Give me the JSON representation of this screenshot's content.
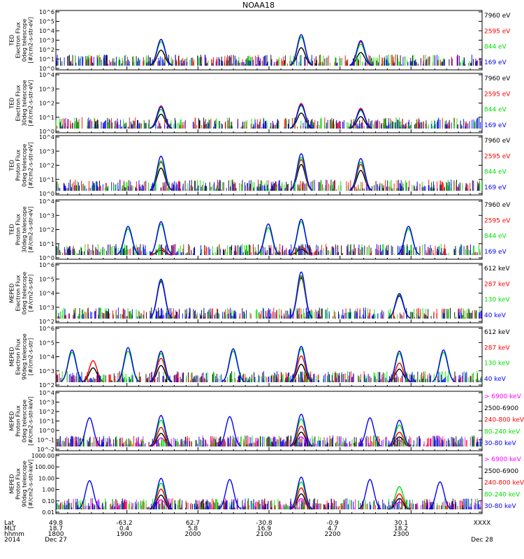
{
  "title": "NOAA18",
  "colors": {
    "black": "#000000",
    "red": "#ff0000",
    "green": "#00e000",
    "blue": "#0000ff",
    "magenta": "#ff00ff"
  },
  "chart_data": [
    {
      "type": "line",
      "ylabel": [
        "TED",
        "Electron Flux",
        "0deg telescope",
        "[#/cm2-s-str-eV]"
      ],
      "yticks": [
        "10^6",
        "10^5",
        "10^4",
        "10^3",
        "10^2",
        "10^1",
        "10^0"
      ],
      "series": [
        {
          "name": "7960 eV",
          "color": "#000000",
          "peaks": [
            {
              "x": 8.42,
              "h": 1.3
            },
            {
              "x": 10.42,
              "h": 1.5
            },
            {
              "x": 11.27,
              "h": 1.1
            }
          ]
        },
        {
          "name": "2595 eV",
          "color": "#ff0000",
          "peaks": [
            {
              "x": 8.42,
              "h": 2.2
            },
            {
              "x": 10.42,
              "h": 2.4
            },
            {
              "x": 11.27,
              "h": 2.0
            }
          ]
        },
        {
          "name": "844 eV",
          "color": "#00e000",
          "peaks": [
            {
              "x": 8.42,
              "h": 2.0
            },
            {
              "x": 10.42,
              "h": 2.4
            },
            {
              "x": 11.27,
              "h": 1.8
            }
          ]
        },
        {
          "name": "169 eV",
          "color": "#0000ff",
          "peaks": [
            {
              "x": 8.42,
              "h": 2.2
            },
            {
              "x": 10.42,
              "h": 2.6
            },
            {
              "x": 11.27,
              "h": 2.1
            }
          ]
        }
      ]
    },
    {
      "type": "line",
      "ylabel": [
        "TED",
        "Electron Flux",
        "30deg telescope",
        "[#/cm2-s-str-eV]"
      ],
      "yticks": [
        "10^4",
        "10^3",
        "10^2",
        "10^1",
        "10^0"
      ],
      "series": [
        {
          "name": "7960 eV",
          "color": "#000000",
          "peaks": [
            {
              "x": 8.42,
              "h": 1.2
            },
            {
              "x": 10.42,
              "h": 1.3
            },
            {
              "x": 11.27,
              "h": 1.0
            }
          ]
        },
        {
          "name": "2595 eV",
          "color": "#ff0000",
          "peaks": [
            {
              "x": 8.42,
              "h": 1.9
            },
            {
              "x": 10.42,
              "h": 2.1
            },
            {
              "x": 11.27,
              "h": 1.7
            }
          ]
        },
        {
          "name": "844 eV",
          "color": "#00e000",
          "peaks": [
            {
              "x": 8.42,
              "h": 1.6
            },
            {
              "x": 10.42,
              "h": 1.9
            },
            {
              "x": 11.27,
              "h": 1.5
            }
          ]
        },
        {
          "name": "169 eV",
          "color": "#0000ff",
          "peaks": [
            {
              "x": 8.42,
              "h": 1.8
            },
            {
              "x": 10.42,
              "h": 2.0
            },
            {
              "x": 11.27,
              "h": 1.6
            }
          ]
        }
      ]
    },
    {
      "type": "line",
      "ylabel": [
        "TED",
        "Proton Flux",
        "0deg telescope",
        "[#/cm2-s-str-eV]"
      ],
      "yticks": [
        "10^4",
        "10^3",
        "10^2",
        "10^1",
        "10^0"
      ],
      "series": [
        {
          "name": "7960 eV",
          "color": "#000000",
          "peaks": [
            {
              "x": 8.42,
              "h": 1.9
            },
            {
              "x": 10.42,
              "h": 2.2
            },
            {
              "x": 11.27,
              "h": 1.7
            }
          ]
        },
        {
          "name": "2595 eV",
          "color": "#ff0000",
          "peaks": [
            {
              "x": 8.42,
              "h": 2.4
            },
            {
              "x": 10.42,
              "h": 2.6
            },
            {
              "x": 11.27,
              "h": 2.2
            }
          ]
        },
        {
          "name": "844 eV",
          "color": "#00e000",
          "peaks": [
            {
              "x": 8.42,
              "h": 2.5
            },
            {
              "x": 10.42,
              "h": 2.8
            },
            {
              "x": 11.27,
              "h": 2.4
            }
          ]
        },
        {
          "name": "169 eV",
          "color": "#0000ff",
          "peaks": [
            {
              "x": 8.42,
              "h": 2.9
            },
            {
              "x": 10.42,
              "h": 3.1
            },
            {
              "x": 11.27,
              "h": 2.7
            }
          ]
        }
      ]
    },
    {
      "type": "line",
      "ylabel": [
        "TED",
        "Proton Flux",
        "30deg telescope",
        "[#/cm2-s-str-eV]"
      ],
      "yticks": [
        "10^4",
        "10^3",
        "10^2",
        "10^1",
        "10^0"
      ],
      "series": [
        {
          "name": "7960 eV",
          "color": "#000000",
          "peaks": [
            {
              "x": 8.42,
              "h": 0.4
            },
            {
              "x": 10.42,
              "h": 0.5
            }
          ]
        },
        {
          "name": "2595 eV",
          "color": "#ff0000",
          "peaks": [
            {
              "x": 8.42,
              "h": 0.6
            },
            {
              "x": 10.42,
              "h": 0.7
            }
          ]
        },
        {
          "name": "844 eV",
          "color": "#00e000",
          "peaks": [
            {
              "x": 7.95,
              "h": 2.2
            },
            {
              "x": 8.42,
              "h": 2.6
            },
            {
              "x": 9.95,
              "h": 2.3
            },
            {
              "x": 10.42,
              "h": 2.8
            },
            {
              "x": 11.95,
              "h": 2.2
            }
          ]
        },
        {
          "name": "169 eV",
          "color": "#0000ff",
          "peaks": [
            {
              "x": 7.95,
              "h": 2.4
            },
            {
              "x": 8.42,
              "h": 2.8
            },
            {
              "x": 9.95,
              "h": 2.6
            },
            {
              "x": 10.42,
              "h": 3.0
            },
            {
              "x": 11.95,
              "h": 2.4
            }
          ]
        }
      ]
    },
    {
      "type": "line",
      "ylabel": [
        "MEPED",
        "Electron Flux",
        "0deg telescope",
        "[#/cm2-s-str]"
      ],
      "yticks": [
        "10^6",
        "10^5",
        "10^4",
        "10^3",
        "10^2"
      ],
      "series": [
        {
          "name": "612 keV",
          "color": "#000000",
          "peaks": [
            {
              "x": 8.42,
              "h": 3.1
            },
            {
              "x": 10.42,
              "h": 3.4
            },
            {
              "x": 11.82,
              "h": 1.9
            }
          ]
        },
        {
          "name": "287 keV",
          "color": "#ff0000",
          "peaks": [
            {
              "x": 8.42,
              "h": 3.2
            },
            {
              "x": 10.42,
              "h": 3.5
            },
            {
              "x": 11.82,
              "h": 2.0
            }
          ]
        },
        {
          "name": "130 keV",
          "color": "#00e000",
          "peaks": [
            {
              "x": 8.42,
              "h": 3.2
            },
            {
              "x": 10.42,
              "h": 3.6
            },
            {
              "x": 11.82,
              "h": 2.0
            }
          ]
        },
        {
          "name": "40 keV",
          "color": "#0000ff",
          "peaks": [
            {
              "x": 8.42,
              "h": 3.3
            },
            {
              "x": 10.42,
              "h": 3.9
            },
            {
              "x": 11.82,
              "h": 2.1
            }
          ]
        }
      ]
    },
    {
      "type": "line",
      "ylabel": [
        "MEPED",
        "Electron Flux",
        "90deg telescope",
        "[#/cm2-s-str]"
      ],
      "yticks": [
        "10^6",
        "10^5",
        "10^4",
        "10^3",
        "10^2"
      ],
      "series": [
        {
          "name": "612 keV",
          "color": "#000000",
          "peaks": [
            {
              "x": 7.45,
              "h": 1.2
            },
            {
              "x": 8.42,
              "h": 1.4
            },
            {
              "x": 10.42,
              "h": 1.5
            },
            {
              "x": 11.82,
              "h": 1.1
            }
          ]
        },
        {
          "name": "287 keV",
          "color": "#ff0000",
          "peaks": [
            {
              "x": 7.45,
              "h": 1.8
            },
            {
              "x": 8.42,
              "h": 2.0
            },
            {
              "x": 10.42,
              "h": 2.2
            },
            {
              "x": 11.82,
              "h": 1.6
            }
          ]
        },
        {
          "name": "130 keV",
          "color": "#00e000",
          "peaks": [
            {
              "x": 7.15,
              "h": 2.5
            },
            {
              "x": 7.95,
              "h": 2.6
            },
            {
              "x": 8.42,
              "h": 2.4
            },
            {
              "x": 9.45,
              "h": 2.6
            },
            {
              "x": 10.42,
              "h": 2.8
            },
            {
              "x": 11.82,
              "h": 2.4
            },
            {
              "x": 12.45,
              "h": 2.5
            }
          ]
        },
        {
          "name": "40 keV",
          "color": "#0000ff",
          "peaks": [
            {
              "x": 7.15,
              "h": 2.7
            },
            {
              "x": 7.95,
              "h": 2.9
            },
            {
              "x": 8.42,
              "h": 2.6
            },
            {
              "x": 9.45,
              "h": 2.8
            },
            {
              "x": 10.42,
              "h": 3.0
            },
            {
              "x": 11.82,
              "h": 2.6
            },
            {
              "x": 12.45,
              "h": 2.7
            }
          ]
        }
      ]
    },
    {
      "type": "line",
      "ylabel": [
        "MEPED",
        "Proton Flux",
        "0deg telescope",
        "[#/cm2-s-str-keV]"
      ],
      "yticks": [
        "10^4",
        "10^3",
        "10^2",
        "10^1",
        "10^0",
        "10^-1",
        "10^-2"
      ],
      "series": [
        {
          "name": "> 6900 keV",
          "color": "#ff00ff",
          "peaks": [
            {
              "x": 8.42,
              "h": 0.7
            },
            {
              "x": 10.42,
              "h": 0.8
            },
            {
              "x": 11.82,
              "h": 0.5
            }
          ]
        },
        {
          "name": "2500-6900",
          "color": "#000000",
          "peaks": [
            {
              "x": 8.42,
              "h": 1.1
            },
            {
              "x": 10.42,
              "h": 1.2
            },
            {
              "x": 11.82,
              "h": 0.8
            }
          ]
        },
        {
          "name": "240-800 keV",
          "color": "#ff0000",
          "peaks": [
            {
              "x": 8.42,
              "h": 1.6
            },
            {
              "x": 10.42,
              "h": 1.7
            },
            {
              "x": 11.82,
              "h": 1.2
            }
          ]
        },
        {
          "name": "80-240 keV",
          "color": "#00e000",
          "peaks": [
            {
              "x": 8.42,
              "h": 2.2
            },
            {
              "x": 10.42,
              "h": 2.3
            },
            {
              "x": 11.82,
              "h": 1.8
            }
          ]
        },
        {
          "name": "30-80 keV",
          "color": "#0000ff",
          "peaks": [
            {
              "x": 7.4,
              "h": 2.4
            },
            {
              "x": 8.42,
              "h": 2.6
            },
            {
              "x": 9.4,
              "h": 2.5
            },
            {
              "x": 10.42,
              "h": 2.7
            },
            {
              "x": 11.4,
              "h": 2.4
            },
            {
              "x": 11.82,
              "h": 2.2
            }
          ]
        }
      ]
    },
    {
      "type": "line",
      "ylabel": [
        "MEPED",
        "Proton Flux",
        "90deg telescope",
        "[#/cm2-s-str-keV]"
      ],
      "yticks": [
        "1000.00",
        "100.00",
        "10.00",
        "1.00",
        "0.10",
        "0.01"
      ],
      "series": [
        {
          "name": "> 6900 keV",
          "color": "#ff00ff",
          "peaks": [
            {
              "x": 8.42,
              "h": 0.8
            },
            {
              "x": 10.42,
              "h": 0.9
            },
            {
              "x": 11.82,
              "h": 0.6
            }
          ]
        },
        {
          "name": "2500-6900",
          "color": "#000000",
          "peaks": [
            {
              "x": 8.42,
              "h": 1.2
            },
            {
              "x": 10.42,
              "h": 1.3
            },
            {
              "x": 11.82,
              "h": 0.9
            }
          ]
        },
        {
          "name": "240-800 keV",
          "color": "#ff0000",
          "peaks": [
            {
              "x": 8.42,
              "h": 1.7
            },
            {
              "x": 10.42,
              "h": 1.8
            },
            {
              "x": 11.82,
              "h": 1.3
            }
          ]
        },
        {
          "name": "80-240 keV",
          "color": "#00e000",
          "peaks": [
            {
              "x": 8.42,
              "h": 2.2
            },
            {
              "x": 10.42,
              "h": 2.3
            },
            {
              "x": 11.82,
              "h": 1.9
            }
          ]
        },
        {
          "name": "30-80 keV",
          "color": "#0000ff",
          "peaks": [
            {
              "x": 7.4,
              "h": 2.4
            },
            {
              "x": 8.42,
              "h": 2.6
            },
            {
              "x": 9.4,
              "h": 2.5
            },
            {
              "x": 10.42,
              "h": 2.7
            },
            {
              "x": 11.4,
              "h": 2.5
            },
            {
              "x": 12.4,
              "h": 2.3
            }
          ]
        }
      ]
    }
  ],
  "xaxis": {
    "row_labels": [
      "Lat",
      "MLT",
      "hhmm"
    ],
    "year": "2014",
    "ticks": [
      {
        "lat": "49.8",
        "mlt": "18.7",
        "hhmm": "1800",
        "date": "Dec 27"
      },
      {
        "lat": "-63.2",
        "mlt": "0.4",
        "hhmm": "1900",
        "date": ""
      },
      {
        "lat": "62.7",
        "mlt": "5.8",
        "hhmm": "2000",
        "date": ""
      },
      {
        "lat": "-30.8",
        "mlt": "16.9",
        "hhmm": "2100",
        "date": ""
      },
      {
        "lat": "-0.9",
        "mlt": "4.7",
        "hhmm": "2200",
        "date": ""
      },
      {
        "lat": "30.1",
        "mlt": "18.2",
        "hhmm": "2300",
        "date": ""
      },
      {
        "lat": "XXXX",
        "mlt": "",
        "hhmm": "",
        "date": "Dec 28"
      }
    ]
  }
}
